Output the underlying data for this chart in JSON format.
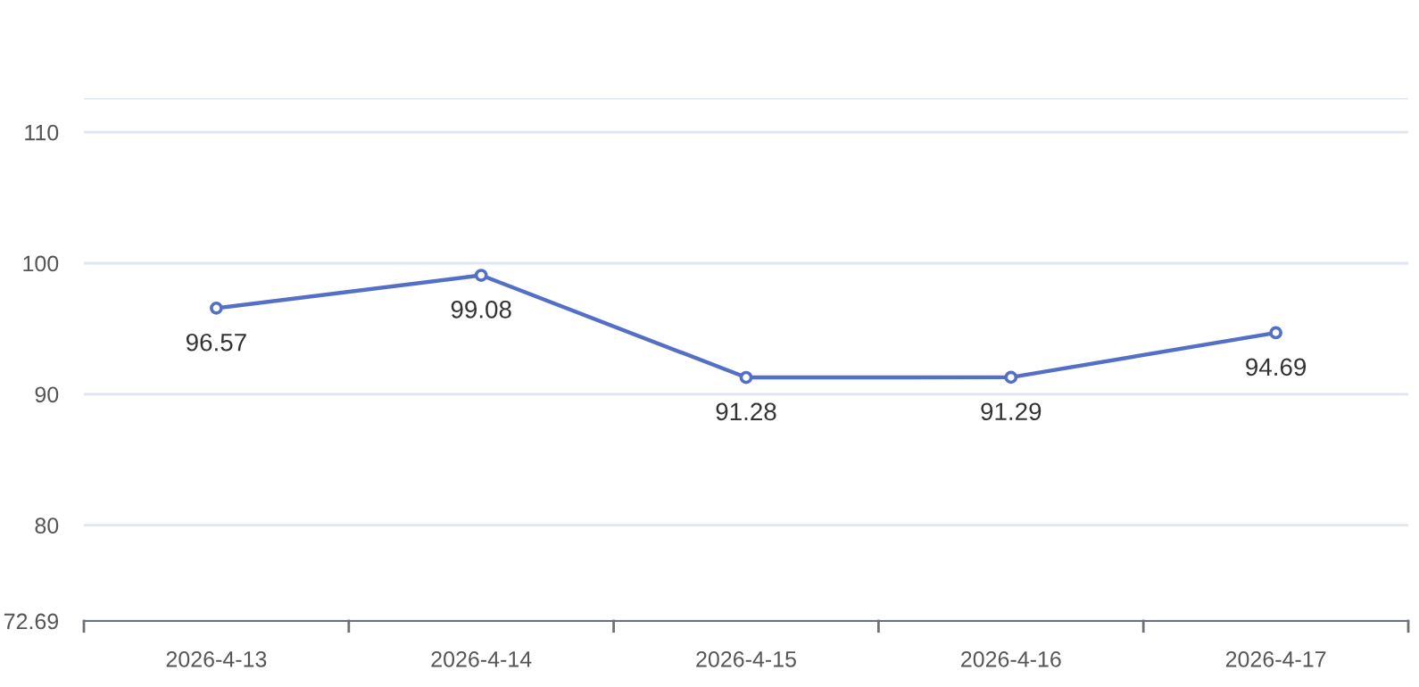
{
  "chart_data": {
    "type": "line",
    "categories": [
      "2026-4-13",
      "2026-4-14",
      "2026-4-15",
      "2026-4-16",
      "2026-4-17"
    ],
    "series": [
      {
        "color": "#5470c6",
        "values": [
          96.57,
          99.08,
          91.28,
          91.29,
          94.69
        ]
      }
    ],
    "ylim": [
      72.69,
      112.6
    ],
    "yticks": [
      {
        "value": 72.69,
        "label": "72.69"
      },
      80,
      90,
      100,
      110,
      {
        "value": 112.6,
        "label": null
      }
    ],
    "grid": "y",
    "marker": "circle",
    "line_style": "solid",
    "data_labels": true,
    "legend": false
  }
}
